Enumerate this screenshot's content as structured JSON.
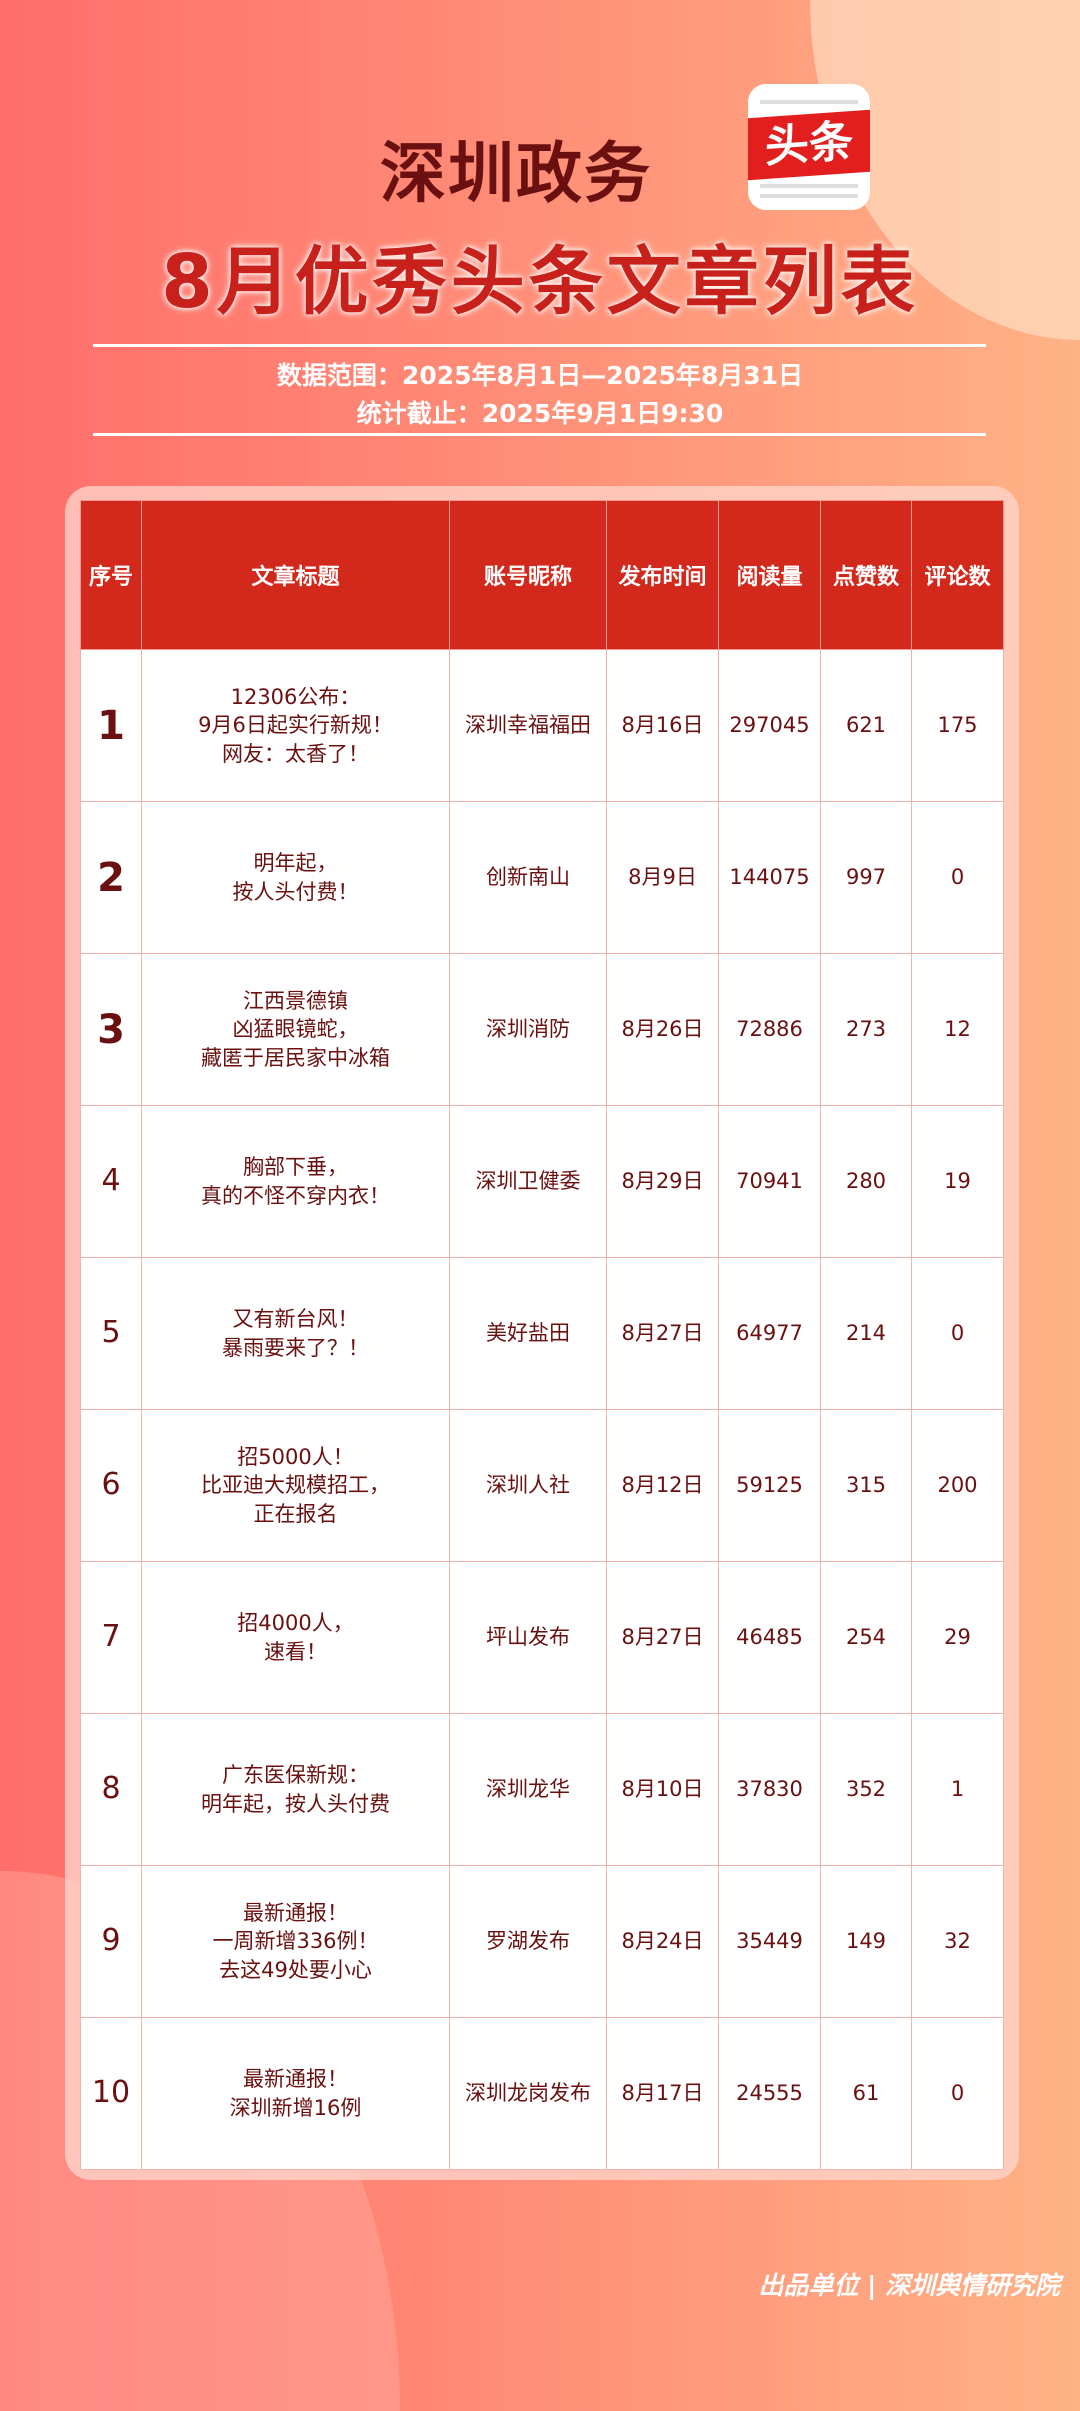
{
  "header": {
    "brand": "深圳政务",
    "logo_text": "头条",
    "title": "8月优秀头条文章列表",
    "data_range": "数据范围：2025年8月1日—2025年8月31日",
    "cutoff": "统计截止：2025年9月1日9:30"
  },
  "table": {
    "columns": [
      "序号",
      "文章标题",
      "账号昵称",
      "发布时间",
      "阅读量",
      "点赞数",
      "评论数"
    ],
    "rows": [
      {
        "rank": "1",
        "title": [
          "12306公布：",
          "9月6日起实行新规！",
          "网友：太香了！"
        ],
        "account": "深圳幸福福田",
        "date": "8月16日",
        "reads": "297045",
        "likes": "621",
        "comments": "175"
      },
      {
        "rank": "2",
        "title": [
          "明年起，",
          "按人头付费！"
        ],
        "account": "创新南山",
        "date": "8月9日",
        "reads": "144075",
        "likes": "997",
        "comments": "0"
      },
      {
        "rank": "3",
        "title": [
          "江西景德镇",
          "凶猛眼镜蛇，",
          "藏匿于居民家中冰箱"
        ],
        "account": "深圳消防",
        "date": "8月26日",
        "reads": "72886",
        "likes": "273",
        "comments": "12"
      },
      {
        "rank": "4",
        "title": [
          "胸部下垂，",
          "真的不怪不穿内衣！"
        ],
        "account": "深圳卫健委",
        "date": "8月29日",
        "reads": "70941",
        "likes": "280",
        "comments": "19"
      },
      {
        "rank": "5",
        "title": [
          "又有新台风！",
          "暴雨要来了？！"
        ],
        "account": "美好盐田",
        "date": "8月27日",
        "reads": "64977",
        "likes": "214",
        "comments": "0"
      },
      {
        "rank": "6",
        "title": [
          "招5000人！",
          "比亚迪大规模招工，",
          "正在报名"
        ],
        "account": "深圳人社",
        "date": "8月12日",
        "reads": "59125",
        "likes": "315",
        "comments": "200"
      },
      {
        "rank": "7",
        "title": [
          "招4000人，",
          "速看！"
        ],
        "account": "坪山发布",
        "date": "8月27日",
        "reads": "46485",
        "likes": "254",
        "comments": "29"
      },
      {
        "rank": "8",
        "title": [
          "广东医保新规：",
          "明年起，按人头付费"
        ],
        "account": "深圳龙华",
        "date": "8月10日",
        "reads": "37830",
        "likes": "352",
        "comments": "1"
      },
      {
        "rank": "9",
        "title": [
          "最新通报！",
          "一周新增336例！",
          "去这49处要小心"
        ],
        "account": "罗湖发布",
        "date": "8月24日",
        "reads": "35449",
        "likes": "149",
        "comments": "32"
      },
      {
        "rank": "10",
        "title": [
          "最新通报！",
          "深圳新增16例"
        ],
        "account": "深圳龙岗发布",
        "date": "8月17日",
        "reads": "24555",
        "likes": "61",
        "comments": "0"
      }
    ]
  },
  "footer": "出品单位 | 深圳舆情研究院"
}
